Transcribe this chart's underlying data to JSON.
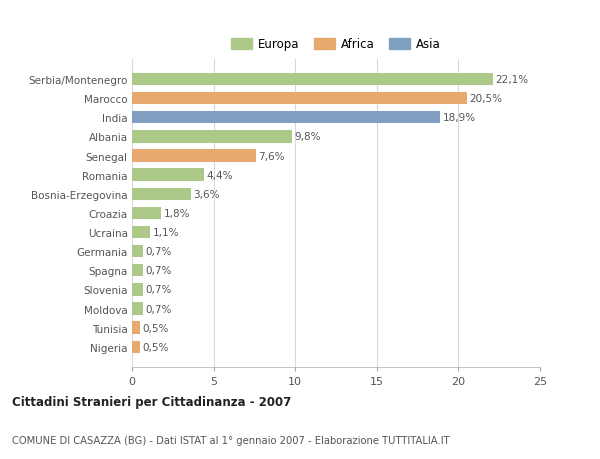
{
  "countries": [
    "Serbia/Montenegro",
    "Marocco",
    "India",
    "Albania",
    "Senegal",
    "Romania",
    "Bosnia-Erzegovina",
    "Croazia",
    "Ucraina",
    "Germania",
    "Spagna",
    "Slovenia",
    "Moldova",
    "Tunisia",
    "Nigeria"
  ],
  "values": [
    22.1,
    20.5,
    18.9,
    9.8,
    7.6,
    4.4,
    3.6,
    1.8,
    1.1,
    0.7,
    0.7,
    0.7,
    0.7,
    0.5,
    0.5
  ],
  "labels": [
    "22,1%",
    "20,5%",
    "18,9%",
    "9,8%",
    "7,6%",
    "4,4%",
    "3,6%",
    "1,8%",
    "1,1%",
    "0,7%",
    "0,7%",
    "0,7%",
    "0,7%",
    "0,5%",
    "0,5%"
  ],
  "continents": [
    "Europa",
    "Africa",
    "Asia",
    "Europa",
    "Africa",
    "Europa",
    "Europa",
    "Europa",
    "Europa",
    "Europa",
    "Europa",
    "Europa",
    "Europa",
    "Africa",
    "Africa"
  ],
  "colors": {
    "Europa": "#adc98a",
    "Africa": "#e8a96e",
    "Asia": "#7f9ec0"
  },
  "legend_order": [
    "Europa",
    "Africa",
    "Asia"
  ],
  "xlim": [
    0,
    25
  ],
  "xticks": [
    0,
    5,
    10,
    15,
    20,
    25
  ],
  "title1": "Cittadini Stranieri per Cittadinanza - 2007",
  "title2": "COMUNE DI CASAZZA (BG) - Dati ISTAT al 1° gennaio 2007 - Elaborazione TUTTITALIA.IT",
  "bg_color": "#ffffff",
  "grid_color": "#d8d8d8",
  "bar_height": 0.65
}
